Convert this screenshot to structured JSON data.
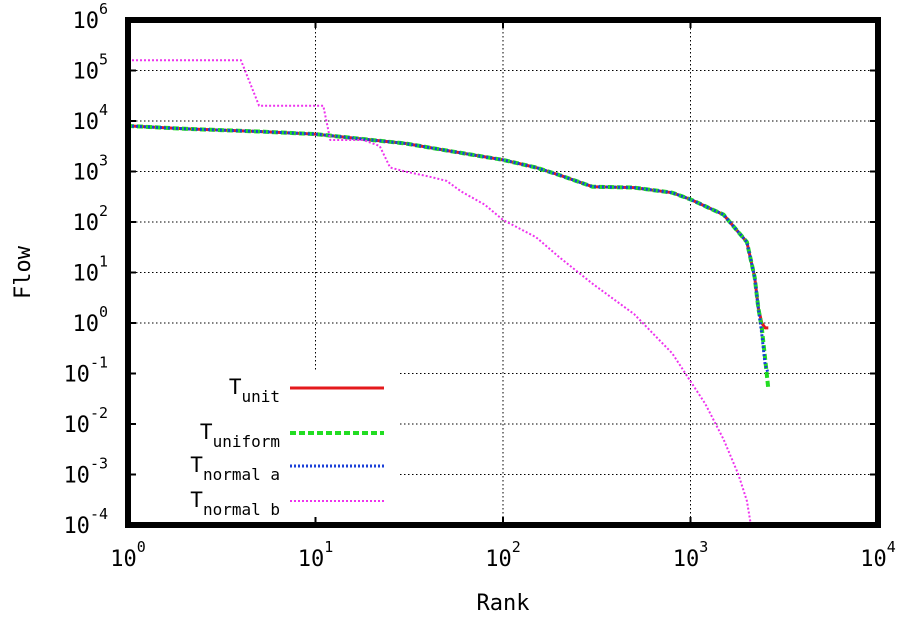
{
  "chart_data": {
    "type": "line",
    "title": "",
    "xlabel": "Rank",
    "ylabel": "Flow",
    "x_scale": "log",
    "y_scale": "log",
    "xlim": [
      1,
      10000
    ],
    "ylim": [
      0.0001,
      1000000
    ],
    "grid": true,
    "legend_position": "bottom-left",
    "x_ticks": [
      {
        "base": "10",
        "exp": "0",
        "value": 1
      },
      {
        "base": "10",
        "exp": "1",
        "value": 10
      },
      {
        "base": "10",
        "exp": "2",
        "value": 100
      },
      {
        "base": "10",
        "exp": "3",
        "value": 1000
      },
      {
        "base": "10",
        "exp": "4",
        "value": 10000
      }
    ],
    "y_ticks": [
      {
        "base": "10",
        "exp": "-4",
        "value": 0.0001
      },
      {
        "base": "10",
        "exp": "-3",
        "value": 0.001
      },
      {
        "base": "10",
        "exp": "-2",
        "value": 0.01
      },
      {
        "base": "10",
        "exp": "-1",
        "value": 0.1
      },
      {
        "base": "10",
        "exp": "0",
        "value": 1
      },
      {
        "base": "10",
        "exp": "1",
        "value": 10
      },
      {
        "base": "10",
        "exp": "2",
        "value": 100
      },
      {
        "base": "10",
        "exp": "3",
        "value": 1000
      },
      {
        "base": "10",
        "exp": "4",
        "value": 10000
      },
      {
        "base": "10",
        "exp": "5",
        "value": 100000
      },
      {
        "base": "10",
        "exp": "6",
        "value": 1000000
      }
    ],
    "series": [
      {
        "name_main": "T",
        "name_sub": "unit",
        "color": "#e41a1c",
        "style": "solid",
        "width": 3,
        "x": [
          1,
          2,
          5,
          10,
          20,
          30,
          50,
          100,
          150,
          200,
          300,
          500,
          800,
          1000,
          1500,
          2000,
          2200,
          2300,
          2400,
          2500,
          2600
        ],
        "y": [
          8000,
          7000,
          6200,
          5500,
          4200,
          3600,
          2600,
          1700,
          1200,
          850,
          500,
          480,
          380,
          280,
          140,
          40,
          8,
          2,
          1,
          0.8,
          0.8
        ]
      },
      {
        "name_main": "T",
        "name_sub": "uniform",
        "color": "#22dd22",
        "style": "dashed",
        "width": 4,
        "x": [
          1,
          2,
          5,
          10,
          20,
          30,
          50,
          100,
          150,
          200,
          300,
          500,
          800,
          1000,
          1500,
          2000,
          2200,
          2300,
          2400,
          2500,
          2600
        ],
        "y": [
          8000,
          7000,
          6200,
          5500,
          4200,
          3600,
          2600,
          1700,
          1200,
          850,
          500,
          480,
          380,
          280,
          140,
          40,
          8,
          2,
          0.8,
          0.2,
          0.05
        ]
      },
      {
        "name_main": "T",
        "name_sub": "normal a",
        "color": "#1a3fd8",
        "style": "dotted",
        "width": 3,
        "x": [
          1,
          2,
          5,
          10,
          20,
          30,
          50,
          100,
          150,
          200,
          300,
          500,
          800,
          1000,
          1500,
          2000,
          2200,
          2300,
          2400,
          2500,
          2600
        ],
        "y": [
          8000,
          7000,
          6200,
          5500,
          4200,
          3600,
          2600,
          1700,
          1200,
          850,
          500,
          480,
          380,
          280,
          140,
          40,
          8,
          2,
          0.6,
          0.15,
          0.1
        ]
      },
      {
        "name_main": "T",
        "name_sub": "normal b",
        "color": "#ee33ee",
        "style": "dotted",
        "width": 2,
        "x": [
          1,
          4,
          5,
          10,
          11,
          12,
          18,
          22,
          25,
          30,
          40,
          50,
          60,
          80,
          100,
          150,
          200,
          300,
          500,
          800,
          1000,
          1200,
          1500,
          1800,
          2000,
          2100
        ],
        "y": [
          160000,
          160000,
          20000,
          20000,
          20000,
          4200,
          4200,
          3200,
          1200,
          1000,
          800,
          650,
          400,
          220,
          110,
          50,
          20,
          6,
          1.5,
          0.25,
          0.07,
          0.025,
          0.005,
          0.001,
          0.0003,
          0.0001
        ]
      }
    ]
  }
}
